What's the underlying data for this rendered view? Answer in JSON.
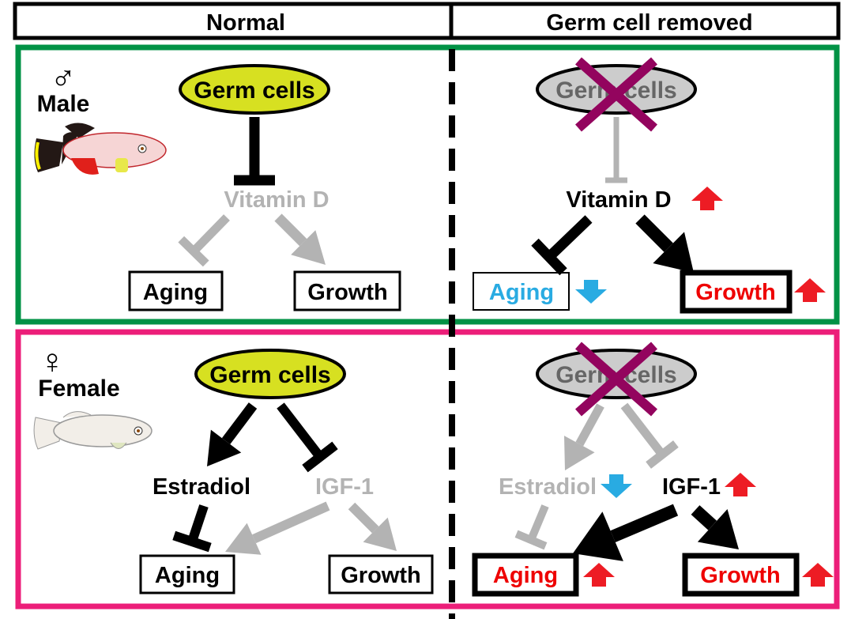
{
  "header": {
    "normal": "Normal",
    "removed": "Germ cell removed"
  },
  "male": {
    "symbol": "♂",
    "label": "Male",
    "normal": {
      "germ": "Germ cells",
      "mediator": "Vitamin D",
      "aging": "Aging",
      "growth": "Growth"
    },
    "removed": {
      "germ": "Germ cells",
      "mediator": "Vitamin D",
      "aging": "Aging",
      "growth": "Growth"
    }
  },
  "female": {
    "symbol": "♀",
    "label": "Female",
    "normal": {
      "germ": "Germ cells",
      "estradiol": "Estradiol",
      "igf": "IGF-1",
      "aging": "Aging",
      "growth": "Growth"
    },
    "removed": {
      "germ": "Germ cells",
      "estradiol": "Estradiol",
      "igf": "IGF-1",
      "aging": "Aging",
      "growth": "Growth"
    }
  },
  "colors": {
    "male_frame": "#009245",
    "female_frame": "#ec1e79",
    "germ_fill": "#d7e021",
    "removed_fill": "#cccccc",
    "cross": "#93045e",
    "inactive": "#b3b3b3",
    "increase": "#ed1c24",
    "decrease": "#29abe2"
  }
}
